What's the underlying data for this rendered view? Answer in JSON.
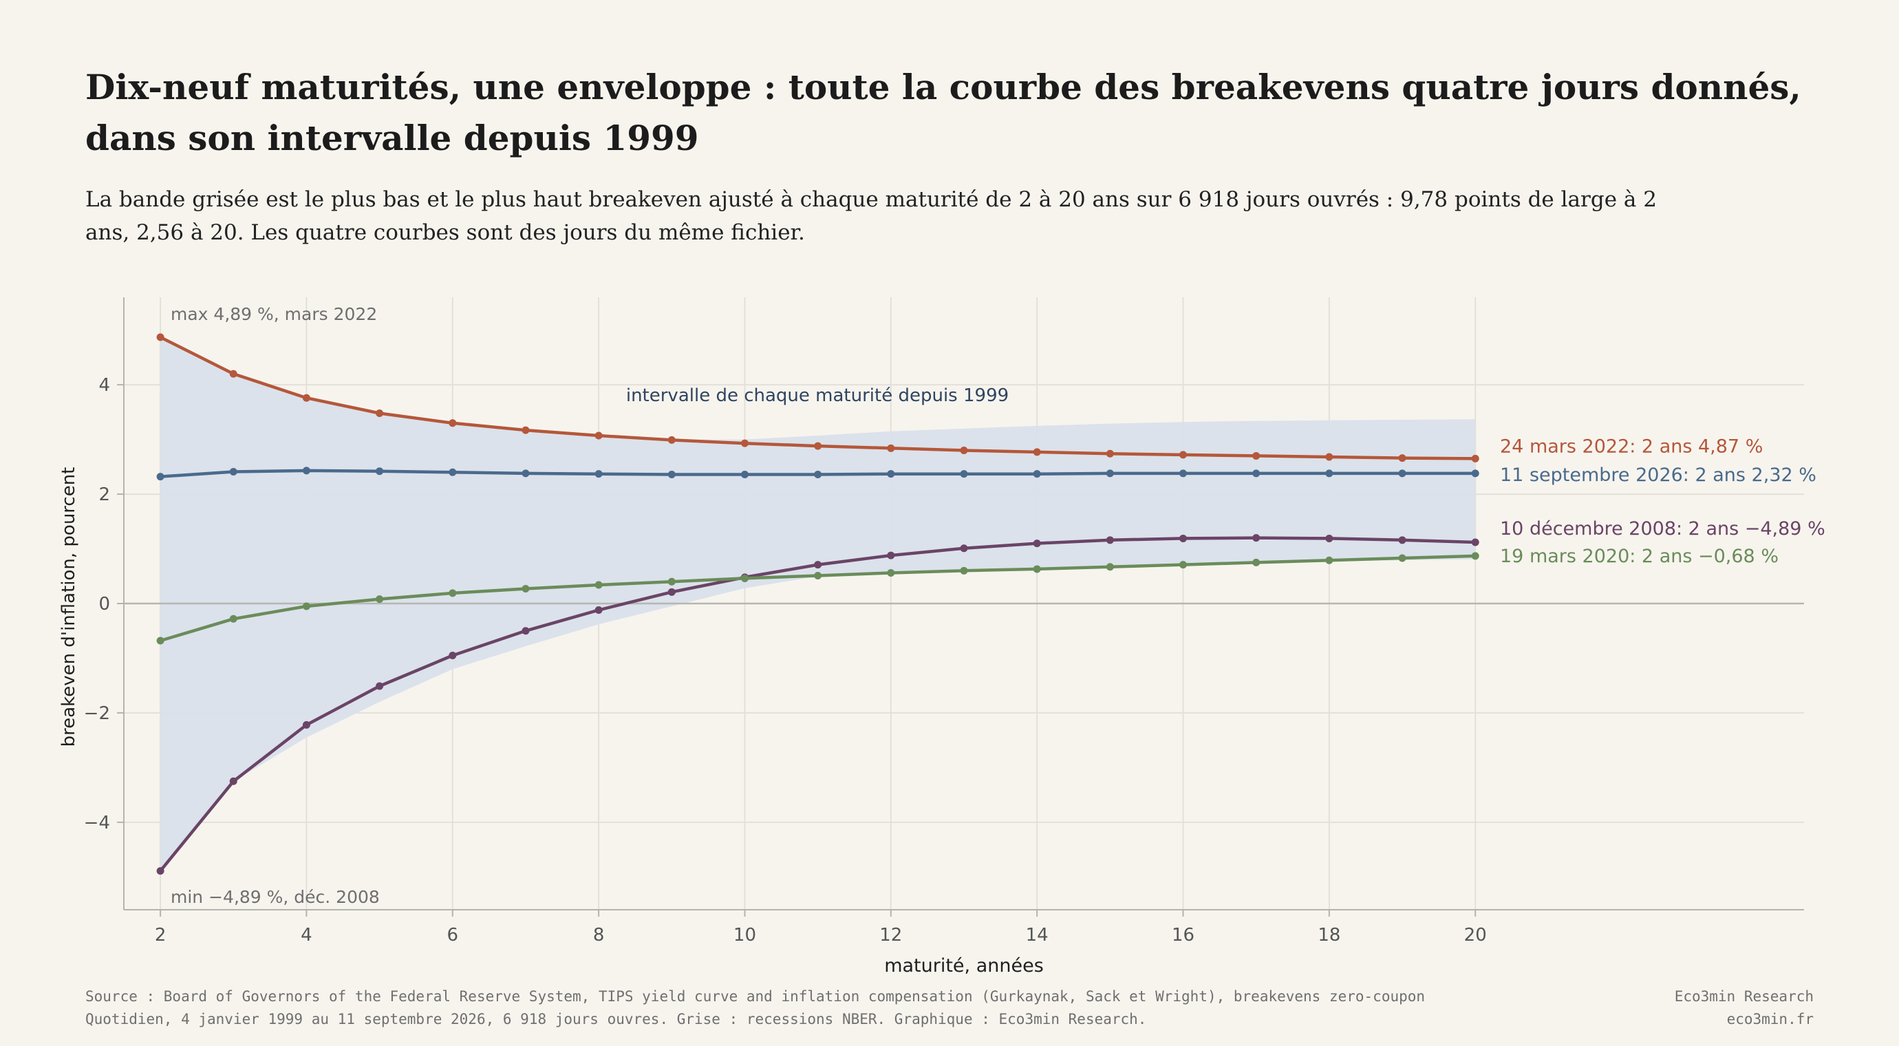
{
  "header": {
    "title": "Dix-neuf maturités, une enveloppe : toute la courbe des breakevens quatre jours donnés, dans son intervalle depuis 1999",
    "subtitle": "La bande grisée est le plus bas et le plus haut breakeven ajusté à chaque maturité de 2 à 20 ans sur 6 918 jours ouvrés : 9,78 points de large à 2 ans, 2,56 à 20. Les quatre courbes sont des jours du même fichier."
  },
  "footer": {
    "source_line1": "Source : Board of Governors of the Federal Reserve System, TIPS yield curve and inflation compensation (Gurkaynak, Sack et Wright), breakevens zero-coupon",
    "source_line2": "Quotidien, 4 janvier 1999 au 11 septembre 2026, 6 918 jours ouvres. Grise : recessions NBER. Graphique : Eco3min Research.",
    "brand_name": "Eco3min Research",
    "brand_site": "eco3min.fr"
  },
  "chart_data": {
    "type": "line",
    "xlabel": "maturité, années",
    "ylabel": "breakeven d'inflation, pourcent",
    "xlim": [
      1.5,
      24.5
    ],
    "ylim": [
      -5.6,
      5.6
    ],
    "xticks": [
      2,
      4,
      6,
      8,
      10,
      12,
      14,
      16,
      18,
      20
    ],
    "yticks": [
      -4,
      -2,
      0,
      2,
      4
    ],
    "grid": true,
    "x": [
      2,
      3,
      4,
      5,
      6,
      7,
      8,
      9,
      10,
      11,
      12,
      13,
      14,
      15,
      16,
      17,
      18,
      19,
      20
    ],
    "band": {
      "label": "intervalle de chaque maturité depuis 1999",
      "color": "#d9e0ea",
      "upper": [
        4.89,
        4.2,
        3.76,
        3.48,
        3.3,
        3.17,
        3.07,
        3.0,
        3.0,
        3.07,
        3.15,
        3.2,
        3.25,
        3.29,
        3.32,
        3.34,
        3.35,
        3.36,
        3.37
      ],
      "lower": [
        -4.89,
        -3.25,
        -2.45,
        -1.8,
        -1.2,
        -0.78,
        -0.38,
        -0.05,
        0.28,
        0.5,
        0.55,
        0.6,
        0.64,
        0.68,
        0.71,
        0.74,
        0.77,
        0.79,
        0.81
      ]
    },
    "series": [
      {
        "name": "24 mars 2022: 2 ans 4,87 %",
        "color": "#b5573a",
        "values": [
          4.87,
          4.2,
          3.76,
          3.48,
          3.3,
          3.17,
          3.07,
          2.99,
          2.93,
          2.88,
          2.84,
          2.8,
          2.77,
          2.74,
          2.72,
          2.7,
          2.68,
          2.66,
          2.65
        ]
      },
      {
        "name": "11 septembre 2026: 2 ans 2,32 %",
        "color": "#4a6a8c",
        "values": [
          2.32,
          2.41,
          2.43,
          2.42,
          2.4,
          2.38,
          2.37,
          2.36,
          2.36,
          2.36,
          2.37,
          2.37,
          2.37,
          2.38,
          2.38,
          2.38,
          2.38,
          2.38,
          2.38
        ]
      },
      {
        "name": "10 décembre 2008: 2 ans −4,89 %",
        "color": "#6a4466",
        "values": [
          -4.89,
          -3.25,
          -2.22,
          -1.51,
          -0.95,
          -0.5,
          -0.12,
          0.21,
          0.48,
          0.71,
          0.88,
          1.01,
          1.1,
          1.16,
          1.19,
          1.2,
          1.19,
          1.16,
          1.12
        ]
      },
      {
        "name": "19 mars 2020: 2 ans −0,68 %",
        "color": "#6a8c5a",
        "values": [
          -0.68,
          -0.28,
          -0.05,
          0.08,
          0.19,
          0.27,
          0.34,
          0.4,
          0.46,
          0.51,
          0.56,
          0.6,
          0.63,
          0.67,
          0.71,
          0.75,
          0.79,
          0.83,
          0.87
        ]
      }
    ],
    "annotations": {
      "max_label": "max 4,89 %, mars 2022",
      "min_label": "min −4,89 %, déc. 2008"
    }
  }
}
